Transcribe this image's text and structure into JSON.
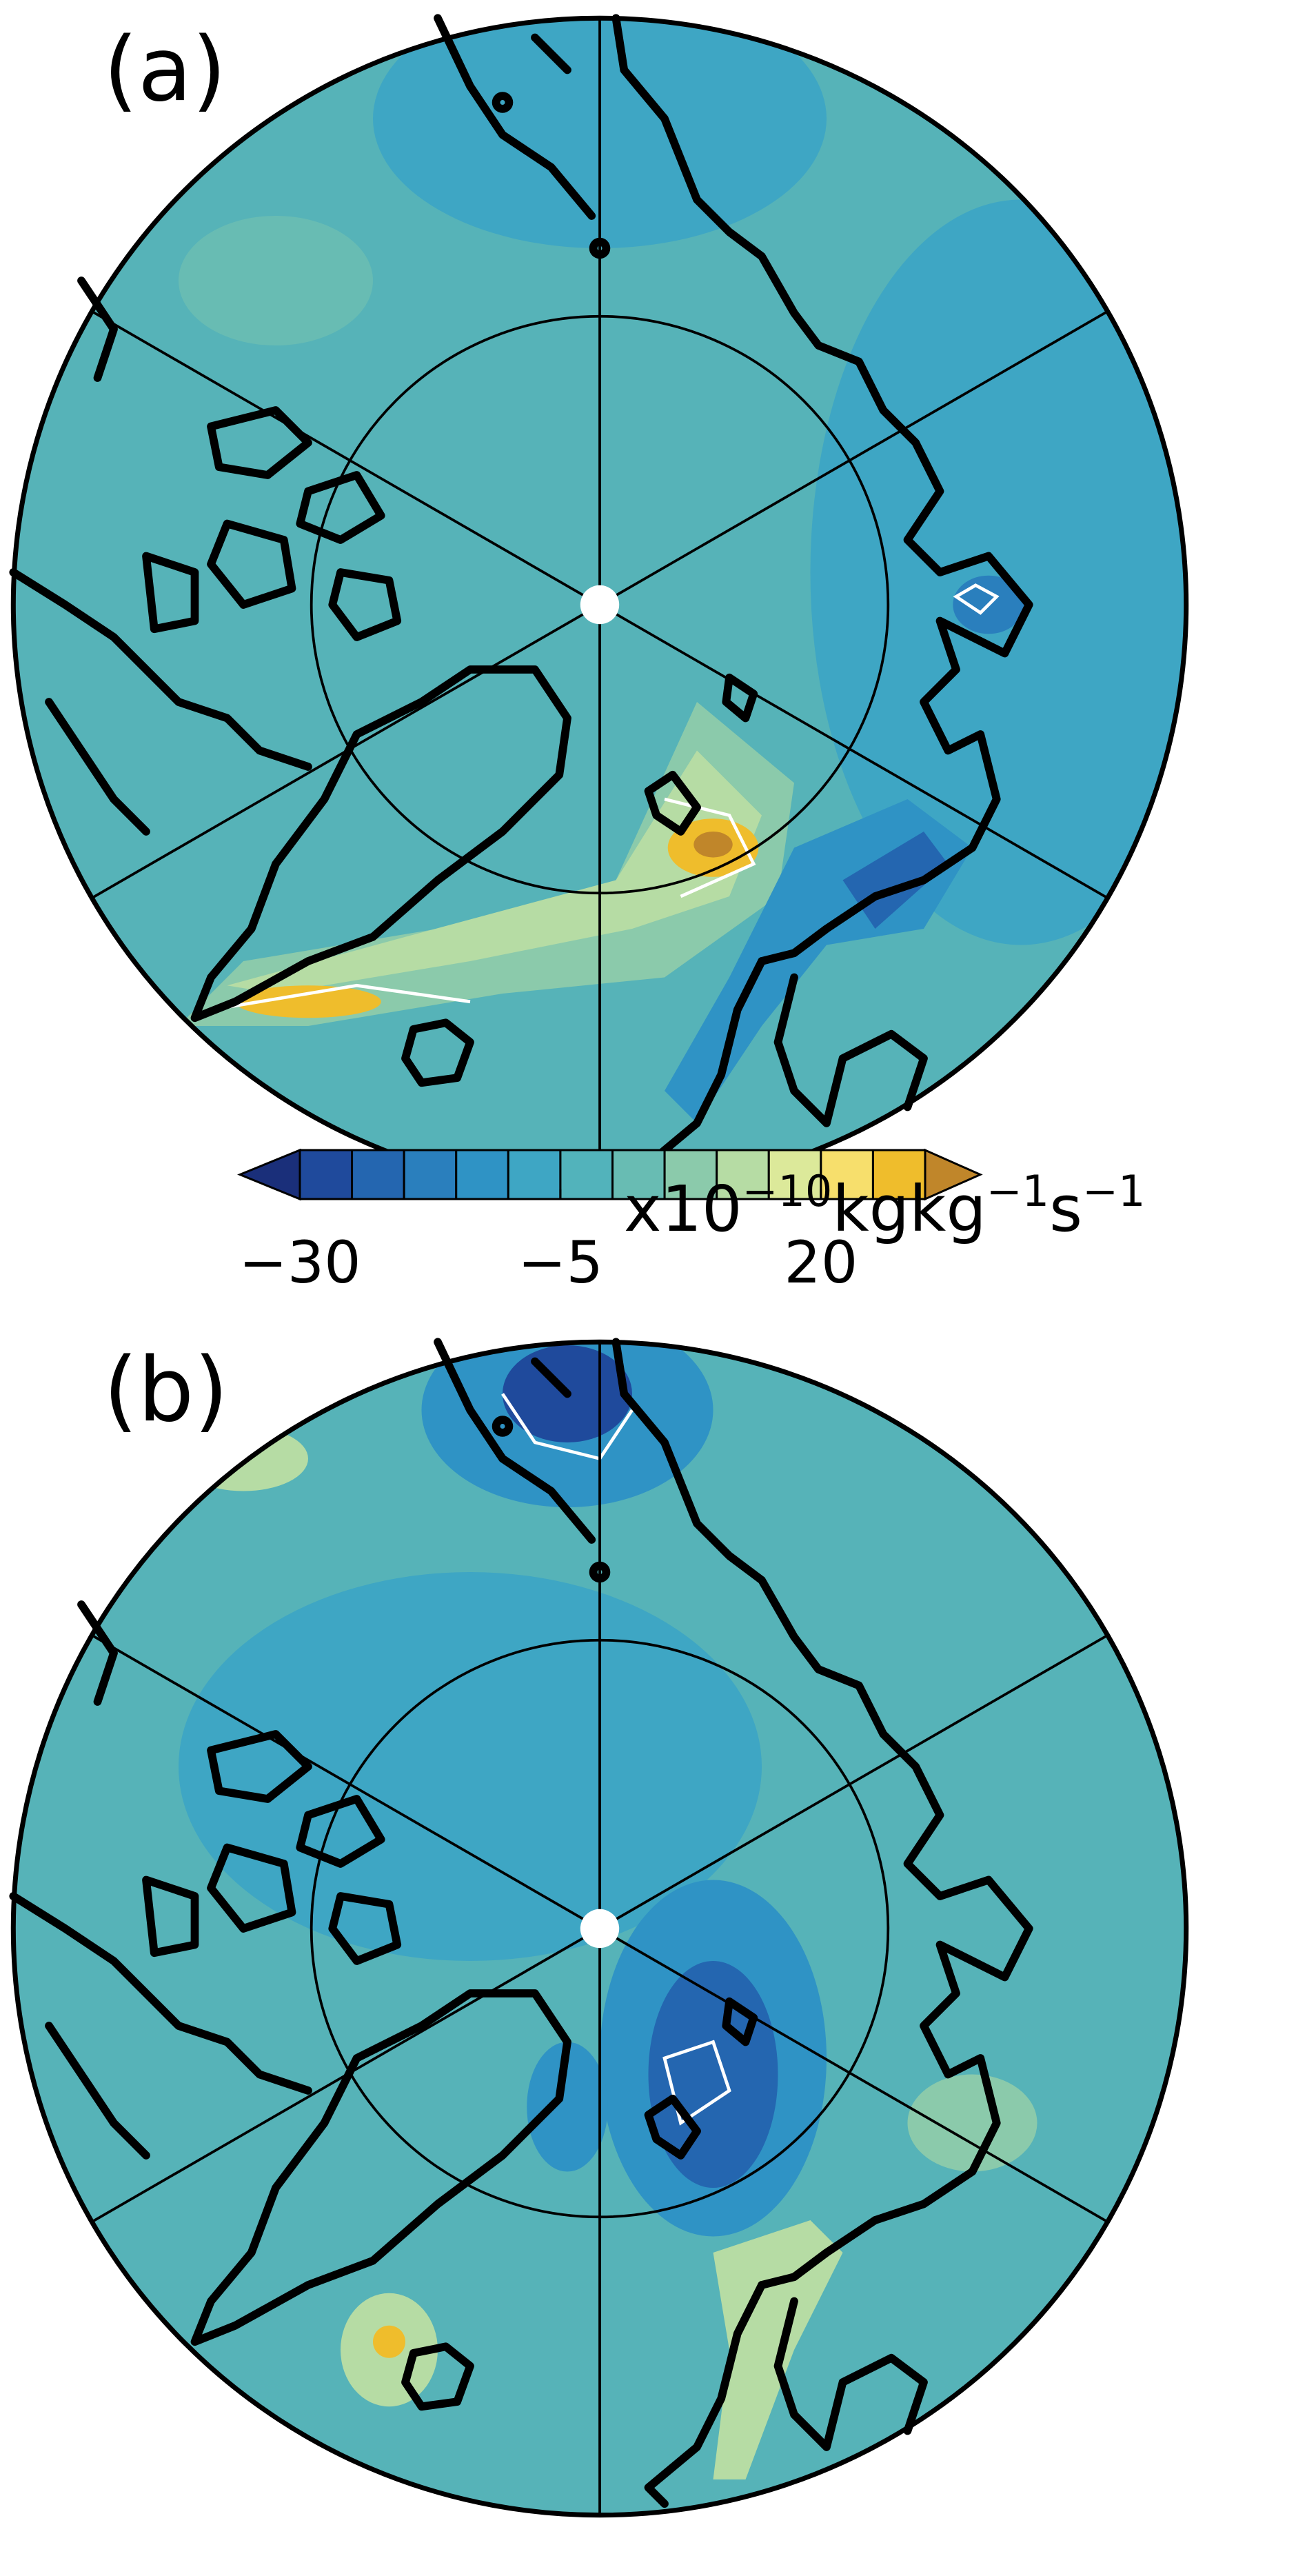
{
  "panels": [
    {
      "label": "(a)"
    },
    {
      "label": "(b)"
    }
  ],
  "colorbar": {
    "lim": [
      -30,
      30
    ],
    "ticks": [
      {
        "value": -30,
        "label": "−30"
      },
      {
        "value": -5,
        "label": "−5"
      },
      20
    ],
    "colors": [
      "#1a2f7a",
      "#1f4a9c",
      "#2466b0",
      "#2a7fbd",
      "#2f93c5",
      "#3ea6c4",
      "#52b3bb",
      "#68bcb3",
      "#8bcaab",
      "#b6dca4",
      "#dce99a",
      "#f7df6c",
      "#efbd2c",
      "#c0862a"
    ],
    "extend": "both",
    "unit": [
      "x10",
      "−10",
      "kgkg",
      "−1",
      "s",
      "−1"
    ]
  }
}
